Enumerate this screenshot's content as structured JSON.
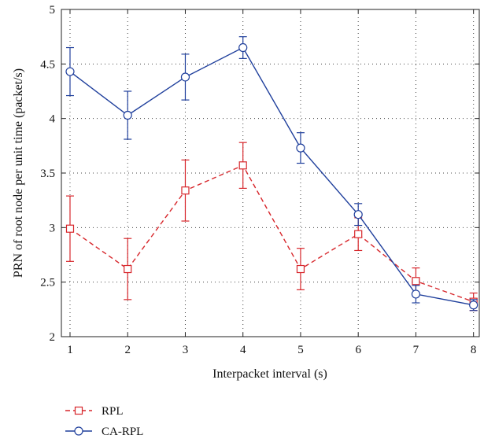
{
  "chart_data": {
    "type": "line",
    "xlabel": "Interpacket interval (s)",
    "ylabel": "PRN of root node per unit time (packet/s)",
    "xlim": [
      0.85,
      8.1
    ],
    "ylim": [
      2,
      5
    ],
    "x_ticks": [
      "1",
      "2",
      "3",
      "4",
      "5",
      "6",
      "7",
      "8"
    ],
    "y_ticks": [
      "2",
      "2.5",
      "3",
      "3.5",
      "4",
      "4.5",
      "5"
    ],
    "grid": true,
    "legend_position": "bottom-left, below plot",
    "x": [
      1,
      2,
      3,
      4,
      5,
      6,
      7,
      8
    ],
    "series": [
      {
        "name": "RPL",
        "color": "#d7262b",
        "line_style": "dashed",
        "marker": "square",
        "values": [
          2.99,
          2.62,
          3.34,
          3.57,
          2.62,
          2.94,
          2.51,
          2.32
        ],
        "error_low": [
          2.69,
          2.34,
          3.06,
          3.36,
          2.43,
          2.79,
          2.39,
          2.24
        ],
        "error_high": [
          3.29,
          2.9,
          3.62,
          3.78,
          2.81,
          3.09,
          2.63,
          2.4
        ]
      },
      {
        "name": "CA-RPL",
        "color": "#1f3f9c",
        "line_style": "solid",
        "marker": "circle",
        "values": [
          4.43,
          4.03,
          4.38,
          4.65,
          3.73,
          3.12,
          2.39,
          2.29
        ],
        "error_low": [
          4.21,
          3.81,
          4.17,
          4.55,
          3.59,
          3.02,
          2.31,
          2.24
        ],
        "error_high": [
          4.65,
          4.25,
          4.59,
          4.75,
          3.87,
          3.22,
          2.47,
          2.34
        ]
      }
    ]
  }
}
